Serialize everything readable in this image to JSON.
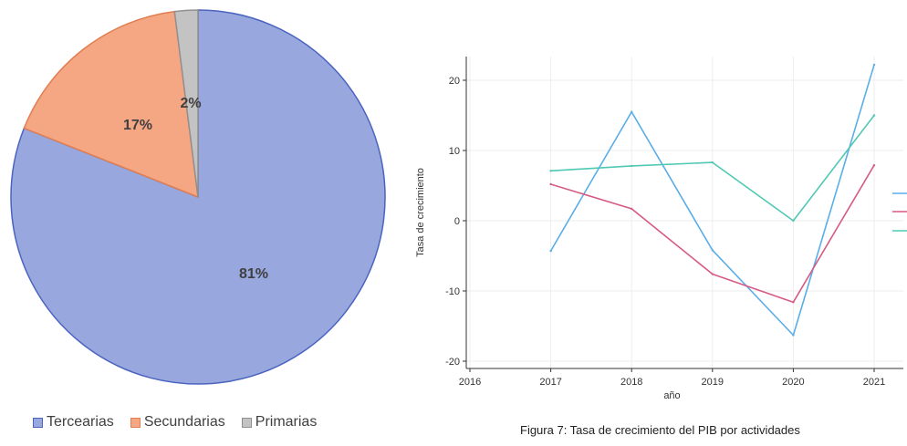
{
  "chart_data": [
    {
      "type": "pie",
      "categories": [
        "Tercearias",
        "Secundarias",
        "Primarias"
      ],
      "values": [
        81,
        17,
        2
      ],
      "labels": [
        "81%",
        "17%",
        "2%"
      ],
      "colors": [
        "#98a8de",
        "#f5a683",
        "#c3c3c3"
      ],
      "edge_colors": [
        "#4a64bf",
        "#e07e52",
        "#909090"
      ],
      "legend": "bottom"
    },
    {
      "type": "line",
      "x": [
        2017,
        2018,
        2019,
        2020,
        2021
      ],
      "series": [
        {
          "values": [
            -4.3,
            15.5,
            -4.2,
            -16.3,
            22.2
          ],
          "color": "#5aaee8"
        },
        {
          "values": [
            5.2,
            1.7,
            -7.6,
            -11.6,
            7.9
          ],
          "color": "#d65a86"
        },
        {
          "values": [
            7.1,
            7.8,
            8.3,
            0.0,
            15.0
          ],
          "color": "#4fc8b4"
        }
      ],
      "xlabel": "año",
      "ylabel": "Tasa de crecimiento",
      "xticks": [
        2016,
        2017,
        2018,
        2019,
        2020,
        2021
      ],
      "yticks": [
        -20,
        -10,
        0,
        10,
        20
      ],
      "xlim": [
        2016,
        2021
      ],
      "ylim": [
        -20.5,
        23
      ],
      "grid": true,
      "legend": "right (cropped)"
    }
  ],
  "caption": "Figura 7: Tasa de crecimiento del PIB por actividades"
}
